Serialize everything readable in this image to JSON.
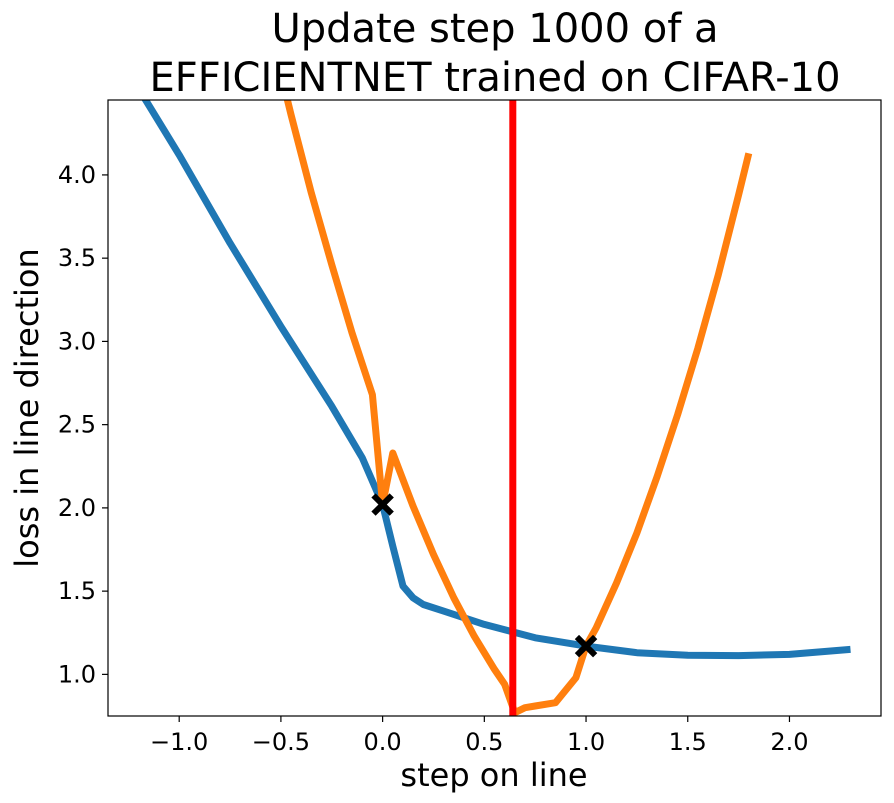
{
  "chart_data": {
    "type": "line",
    "title_lines": [
      "Update step 1000 of a",
      "EFFICIENTNET trained on CIFAR-10"
    ],
    "xlabel": "step on line",
    "ylabel": "loss in line direction",
    "xlim": [
      -1.35,
      2.45
    ],
    "ylim": [
      0.75,
      4.45
    ],
    "x_ticks": [
      -1.0,
      -0.5,
      0.0,
      0.5,
      1.0,
      1.5,
      2.0
    ],
    "x_tick_labels": [
      "−1.0",
      "−0.5",
      "0.0",
      "0.5",
      "1.0",
      "1.5",
      "2.0"
    ],
    "y_ticks": [
      1.0,
      1.5,
      2.0,
      2.5,
      3.0,
      3.5,
      4.0
    ],
    "y_tick_labels": [
      "1.0",
      "1.5",
      "2.0",
      "2.5",
      "3.0",
      "3.5",
      "4.0"
    ],
    "grid": false,
    "series": [
      {
        "color": "#1f77b4",
        "x": [
          -1.25,
          -1.0,
          -0.75,
          -0.5,
          -0.25,
          -0.1,
          0.0,
          0.05,
          0.1,
          0.15,
          0.2,
          0.3,
          0.5,
          0.75,
          1.0,
          1.25,
          1.5,
          1.75,
          2.0,
          2.3
        ],
        "y": [
          4.62,
          4.12,
          3.59,
          3.09,
          2.61,
          2.3,
          2.02,
          1.77,
          1.53,
          1.46,
          1.42,
          1.38,
          1.3,
          1.22,
          1.17,
          1.13,
          1.115,
          1.113,
          1.12,
          1.15
        ]
      },
      {
        "color": "#ff7f0e",
        "x": [
          -0.55,
          -0.45,
          -0.35,
          -0.25,
          -0.15,
          -0.05,
          0.0,
          0.05,
          0.15,
          0.25,
          0.35,
          0.45,
          0.55,
          0.6,
          0.65,
          0.7,
          0.75,
          0.85,
          0.95,
          1.0,
          1.05,
          1.15,
          1.25,
          1.35,
          1.45,
          1.55,
          1.65,
          1.75,
          1.8
        ],
        "y": [
          4.86,
          4.36,
          3.89,
          3.46,
          3.05,
          2.68,
          2.02,
          2.33,
          2.01,
          1.72,
          1.46,
          1.23,
          1.03,
          0.94,
          0.77,
          0.8,
          0.81,
          0.83,
          0.98,
          1.17,
          1.28,
          1.55,
          1.85,
          2.19,
          2.56,
          2.96,
          3.4,
          3.88,
          4.13
        ]
      }
    ],
    "vertical_line": {
      "x": 0.64,
      "color": "#ff0000"
    },
    "markers": [
      {
        "x": 0.0,
        "y": 2.02,
        "symbol": "X",
        "color": "#000000"
      },
      {
        "x": 1.0,
        "y": 1.17,
        "symbol": "X",
        "color": "#000000"
      }
    ]
  }
}
